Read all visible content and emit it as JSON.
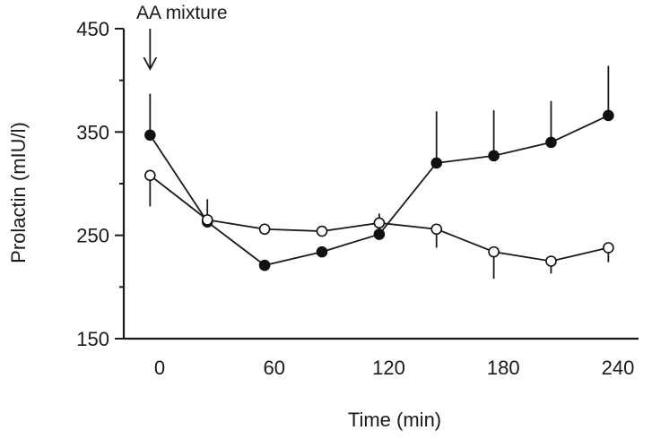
{
  "chart_data": {
    "type": "line",
    "title": "",
    "xlabel": "Time (min)",
    "ylabel": "Prolactin (mIU/l)",
    "xlim": [
      -5,
      245
    ],
    "ylim": [
      150,
      450
    ],
    "x_ticks": [
      0,
      60,
      120,
      180,
      240
    ],
    "y_ticks": [
      150,
      250,
      350,
      450
    ],
    "grid": false,
    "legend": "none",
    "annotation": {
      "text": "AA mixture",
      "x": -5,
      "arrow": "down"
    },
    "series": [
      {
        "marker": "filled-circle",
        "color": "#111111",
        "error_direction": "up",
        "x": [
          -5,
          25,
          55,
          85,
          115,
          145,
          175,
          205,
          235
        ],
        "y": [
          347,
          263,
          221,
          234,
          251,
          320,
          327,
          340,
          366
        ],
        "error": [
          40,
          22,
          0,
          0,
          20,
          50,
          44,
          40,
          48
        ]
      },
      {
        "marker": "open-circle",
        "color": "#111111",
        "error_direction": "down",
        "x": [
          -5,
          25,
          55,
          85,
          115,
          145,
          175,
          205,
          235
        ],
        "y": [
          308,
          265,
          256,
          254,
          262,
          256,
          234,
          225,
          238
        ],
        "error": [
          30,
          0,
          0,
          0,
          0,
          18,
          26,
          12,
          14
        ]
      }
    ]
  }
}
